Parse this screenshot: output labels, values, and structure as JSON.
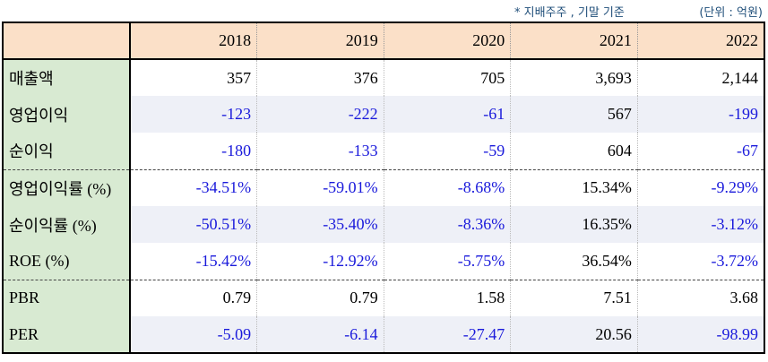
{
  "notes": {
    "basis": "* 지배주주 , 기말 기준",
    "unit": "(단위 : 억원)"
  },
  "header": {
    "corner": "",
    "years": [
      "2018",
      "2019",
      "2020",
      "2021",
      "2022"
    ]
  },
  "rows": [
    {
      "label": "매출액",
      "values": [
        "357",
        "376",
        "705",
        "3,693",
        "2,144"
      ]
    },
    {
      "label": "영업이익",
      "values": [
        "-123",
        "-222",
        "-61",
        "567",
        "-199"
      ]
    },
    {
      "label": "순이익",
      "values": [
        "-180",
        "-133",
        "-59",
        "604",
        "-67"
      ]
    },
    {
      "label": "영업이익률 (%)",
      "values": [
        "-34.51%",
        "-59.01%",
        "-8.68%",
        "15.34%",
        "-9.29%"
      ]
    },
    {
      "label": "순이익률 (%)",
      "values": [
        "-50.51%",
        "-35.40%",
        "-8.36%",
        "16.35%",
        "-3.12%"
      ]
    },
    {
      "label": "ROE (%)",
      "values": [
        "-15.42%",
        "-12.92%",
        "-5.75%",
        "36.54%",
        "-3.72%"
      ]
    },
    {
      "label": "PBR",
      "values": [
        "0.79",
        "0.79",
        "1.58",
        "7.51",
        "3.68"
      ]
    },
    {
      "label": "PER",
      "values": [
        "-5.09",
        "-6.14",
        "-27.47",
        "20.56",
        "-98.99"
      ]
    }
  ],
  "colors": {
    "header_bg": "#fbe0c8",
    "label_bg": "#d8ead2",
    "alt_row_bg": "#eef0f7",
    "negative_text": "#1a1adb",
    "note_text": "#1f4e79"
  }
}
